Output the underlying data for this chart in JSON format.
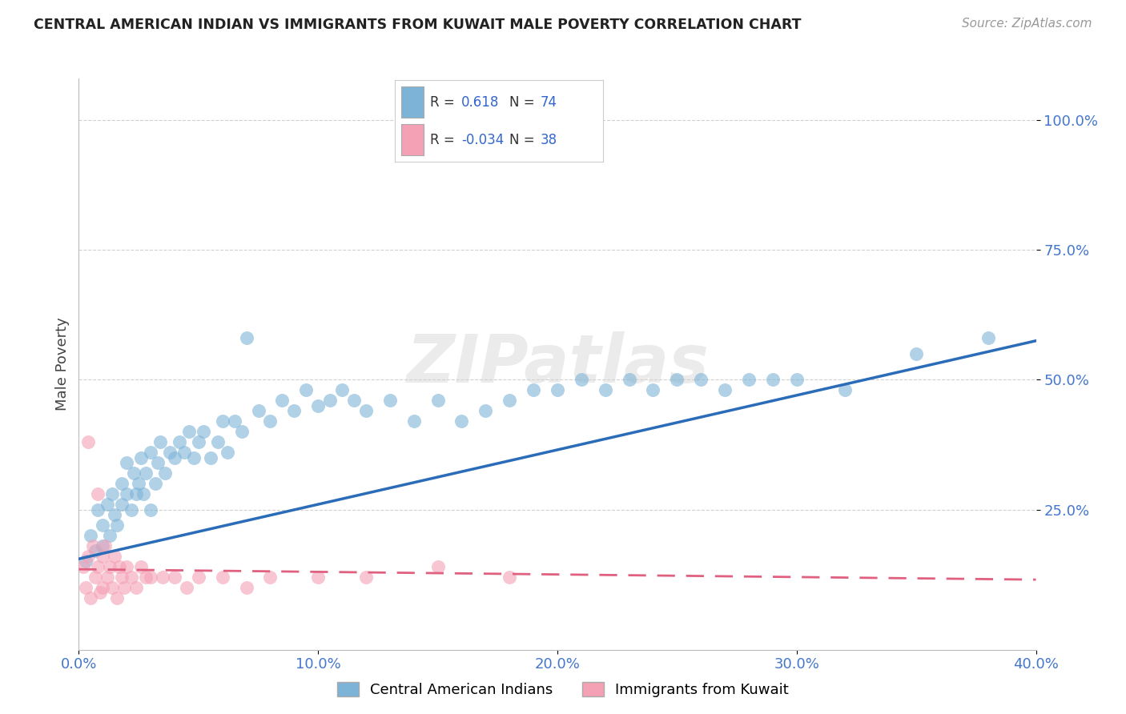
{
  "title": "CENTRAL AMERICAN INDIAN VS IMMIGRANTS FROM KUWAIT MALE POVERTY CORRELATION CHART",
  "source": "Source: ZipAtlas.com",
  "ylabel": "Male Poverty",
  "xlim": [
    0.0,
    0.4
  ],
  "ylim": [
    -0.02,
    1.08
  ],
  "ytick_labels": [
    "25.0%",
    "50.0%",
    "75.0%",
    "100.0%"
  ],
  "ytick_vals": [
    0.25,
    0.5,
    0.75,
    1.0
  ],
  "xtick_labels": [
    "0.0%",
    "10.0%",
    "20.0%",
    "30.0%",
    "40.0%"
  ],
  "xtick_vals": [
    0.0,
    0.1,
    0.2,
    0.3,
    0.4
  ],
  "legend1_label": "Central American Indians",
  "legend2_label": "Immigrants from Kuwait",
  "r1": "0.618",
  "n1": "74",
  "r2": "-0.034",
  "n2": "38",
  "blue_color": "#7EB3D8",
  "pink_color": "#F4A0B5",
  "line_blue": "#2B6CB8",
  "line_pink": "#E06080",
  "watermark": "ZIPatlas",
  "blue_scatter_x": [
    0.003,
    0.005,
    0.007,
    0.008,
    0.01,
    0.01,
    0.012,
    0.013,
    0.014,
    0.015,
    0.016,
    0.018,
    0.018,
    0.02,
    0.02,
    0.022,
    0.023,
    0.024,
    0.025,
    0.026,
    0.027,
    0.028,
    0.03,
    0.03,
    0.032,
    0.033,
    0.034,
    0.036,
    0.038,
    0.04,
    0.042,
    0.044,
    0.046,
    0.048,
    0.05,
    0.052,
    0.055,
    0.058,
    0.06,
    0.062,
    0.065,
    0.068,
    0.07,
    0.075,
    0.08,
    0.085,
    0.09,
    0.095,
    0.1,
    0.105,
    0.11,
    0.115,
    0.12,
    0.13,
    0.14,
    0.15,
    0.16,
    0.17,
    0.18,
    0.19,
    0.2,
    0.21,
    0.22,
    0.23,
    0.24,
    0.25,
    0.26,
    0.27,
    0.28,
    0.29,
    0.3,
    0.32,
    0.35,
    0.38
  ],
  "blue_scatter_y": [
    0.15,
    0.2,
    0.17,
    0.25,
    0.18,
    0.22,
    0.26,
    0.2,
    0.28,
    0.24,
    0.22,
    0.3,
    0.26,
    0.28,
    0.34,
    0.25,
    0.32,
    0.28,
    0.3,
    0.35,
    0.28,
    0.32,
    0.36,
    0.25,
    0.3,
    0.34,
    0.38,
    0.32,
    0.36,
    0.35,
    0.38,
    0.36,
    0.4,
    0.35,
    0.38,
    0.4,
    0.35,
    0.38,
    0.42,
    0.36,
    0.42,
    0.4,
    0.58,
    0.44,
    0.42,
    0.46,
    0.44,
    0.48,
    0.45,
    0.46,
    0.48,
    0.46,
    0.44,
    0.46,
    0.42,
    0.46,
    0.42,
    0.44,
    0.46,
    0.48,
    0.48,
    0.5,
    0.48,
    0.5,
    0.48,
    0.5,
    0.5,
    0.48,
    0.5,
    0.5,
    0.5,
    0.48,
    0.55,
    0.58
  ],
  "pink_scatter_x": [
    0.002,
    0.003,
    0.004,
    0.005,
    0.006,
    0.007,
    0.008,
    0.009,
    0.01,
    0.01,
    0.011,
    0.012,
    0.013,
    0.014,
    0.015,
    0.016,
    0.017,
    0.018,
    0.019,
    0.02,
    0.022,
    0.024,
    0.026,
    0.028,
    0.03,
    0.035,
    0.04,
    0.045,
    0.05,
    0.06,
    0.07,
    0.08,
    0.1,
    0.12,
    0.15,
    0.18,
    0.004,
    0.008
  ],
  "pink_scatter_y": [
    0.14,
    0.1,
    0.16,
    0.08,
    0.18,
    0.12,
    0.14,
    0.09,
    0.16,
    0.1,
    0.18,
    0.12,
    0.14,
    0.1,
    0.16,
    0.08,
    0.14,
    0.12,
    0.1,
    0.14,
    0.12,
    0.1,
    0.14,
    0.12,
    0.12,
    0.12,
    0.12,
    0.1,
    0.12,
    0.12,
    0.1,
    0.12,
    0.12,
    0.12,
    0.14,
    0.12,
    0.38,
    0.28
  ],
  "blue_line_x0": 0.0,
  "blue_line_x1": 0.4,
  "blue_line_y0": 0.155,
  "blue_line_y1": 0.575,
  "pink_line_x0": 0.0,
  "pink_line_x1": 0.4,
  "pink_line_y0": 0.135,
  "pink_line_y1": 0.115
}
